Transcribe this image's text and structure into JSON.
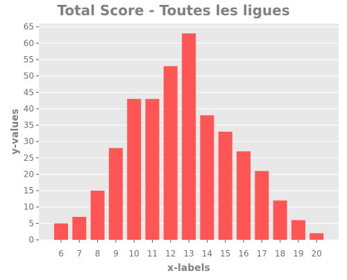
{
  "chart_data": {
    "type": "bar",
    "title": "Total Score - Toutes les ligues",
    "xlabel": "x-labels",
    "ylabel": "y-values",
    "categories": [
      "6",
      "7",
      "8",
      "9",
      "10",
      "11",
      "12",
      "13",
      "14",
      "15",
      "16",
      "17",
      "18",
      "19",
      "20"
    ],
    "values": [
      5,
      7,
      15,
      28,
      43,
      43,
      53,
      63,
      38,
      33,
      27,
      21,
      12,
      6,
      2
    ],
    "ylim": [
      0,
      66
    ],
    "yticks": [
      0,
      5,
      10,
      15,
      20,
      25,
      30,
      35,
      40,
      45,
      50,
      55,
      60,
      65
    ],
    "grid": true,
    "colors": {
      "bar": "#ff5555",
      "plot_background": "#e8e8e8",
      "grid": "#ffffff",
      "text": "#808080",
      "tick_label": "#707070"
    }
  }
}
